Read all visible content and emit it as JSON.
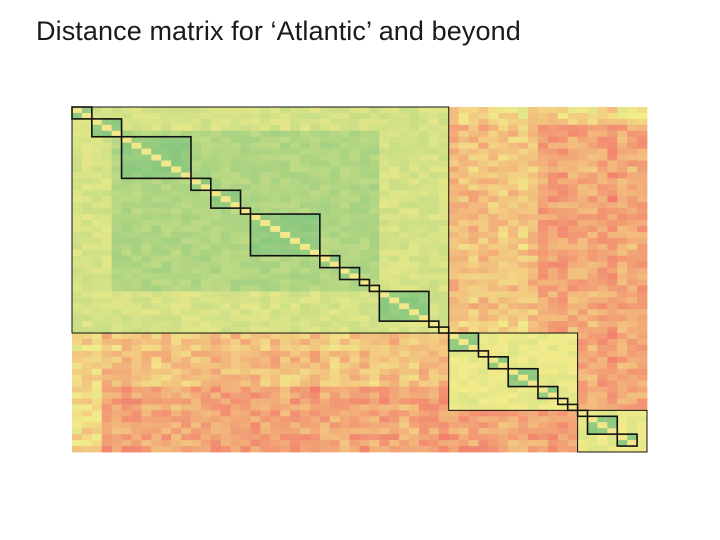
{
  "slide": {
    "title": "Distance matrix for ‘Atlantic’ and beyond"
  },
  "chart_data": {
    "type": "heatmap",
    "title": "Distance matrix for ‘Atlantic’ and beyond",
    "xlabel": "",
    "ylabel": "",
    "matrix_size": 58,
    "diagonal": "identity",
    "color_scale": {
      "low_distance": "#7fc47e",
      "mid_distance": "#f2ec8a",
      "high_distance": "#f2776b"
    },
    "clusters": [
      {
        "start": 0,
        "end": 38
      },
      {
        "start": 38,
        "end": 51
      },
      {
        "start": 51,
        "end": 58
      }
    ],
    "subclusters": [
      {
        "start": 0,
        "end": 2
      },
      {
        "start": 2,
        "end": 5
      },
      {
        "start": 5,
        "end": 12
      },
      {
        "start": 12,
        "end": 14
      },
      {
        "start": 14,
        "end": 17
      },
      {
        "start": 17,
        "end": 18
      },
      {
        "start": 18,
        "end": 25
      },
      {
        "start": 25,
        "end": 27
      },
      {
        "start": 27,
        "end": 29
      },
      {
        "start": 29,
        "end": 30
      },
      {
        "start": 30,
        "end": 31
      },
      {
        "start": 31,
        "end": 36
      },
      {
        "start": 36,
        "end": 37
      },
      {
        "start": 37,
        "end": 38
      },
      {
        "start": 38,
        "end": 41
      },
      {
        "start": 41,
        "end": 42
      },
      {
        "start": 42,
        "end": 44
      },
      {
        "start": 44,
        "end": 47
      },
      {
        "start": 47,
        "end": 49
      },
      {
        "start": 49,
        "end": 50
      },
      {
        "start": 50,
        "end": 51
      },
      {
        "start": 51,
        "end": 52
      },
      {
        "start": 52,
        "end": 55
      },
      {
        "start": 55,
        "end": 57
      }
    ]
  }
}
